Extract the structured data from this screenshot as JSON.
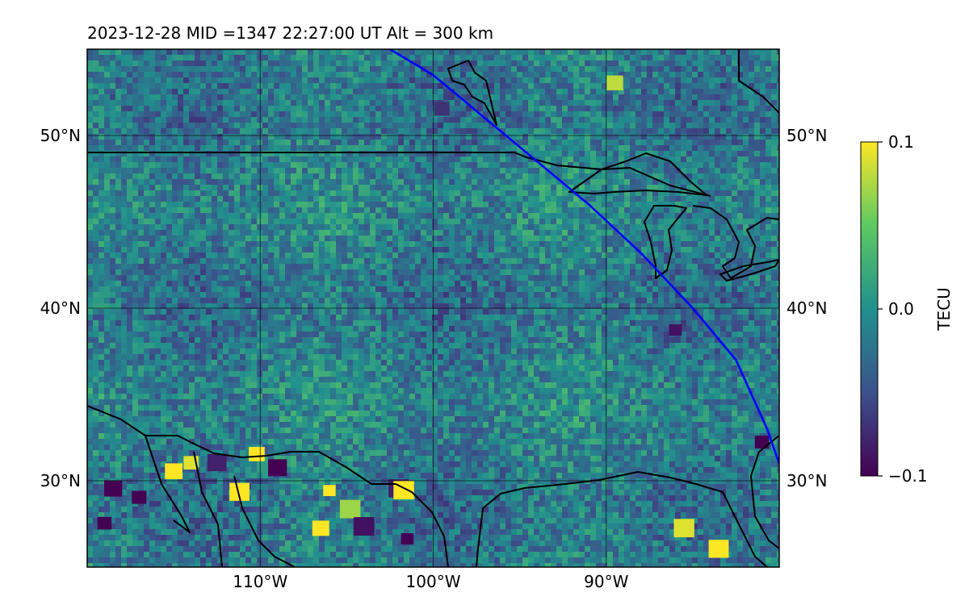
{
  "header": {
    "title": "2023-12-28  MID =1347    22:27:00  UT  Alt = 300 km"
  },
  "chart_data": {
    "type": "heatmap",
    "title": "2023-12-28  MID =1347    22:27:00  UT  Alt = 300 km",
    "date": "2023-12-28",
    "mid": 1347,
    "time_ut": "22:27:00",
    "altitude_km": 300,
    "xlim_lon": [
      -120,
      -80
    ],
    "ylim_lat": [
      25,
      55
    ],
    "lon_ticks": [
      -110,
      -100,
      -90
    ],
    "lon_tick_labels": [
      "110°W",
      "100°W",
      "90°W"
    ],
    "lat_ticks": [
      30,
      40,
      50
    ],
    "lat_tick_labels": [
      "30°N",
      "40°N",
      "50°N"
    ],
    "grid": true,
    "colorbar": {
      "label": "TECU",
      "min": -0.1,
      "max": 0.1,
      "ticks": [
        0.1,
        0.0,
        -0.1
      ],
      "tick_labels": [
        "0.1",
        "0.0",
        "−0.1"
      ],
      "colormap": "viridis",
      "colors": [
        "#440154",
        "#3b528b",
        "#21908d",
        "#5dc963",
        "#fde725"
      ]
    },
    "track": {
      "color": "#0000ff",
      "points": [
        [
          -102.5,
          55
        ],
        [
          -100,
          53.5
        ],
        [
          -97,
          51
        ],
        [
          -94,
          48.5
        ],
        [
          -91,
          46
        ],
        [
          -88,
          43.2
        ],
        [
          -85,
          40
        ],
        [
          -82.5,
          37
        ],
        [
          -80.7,
          33
        ],
        [
          -80,
          31
        ]
      ]
    },
    "hotspots": [
      {
        "lon": -119,
        "lat": 27.5,
        "value": -0.1
      },
      {
        "lon": -118.5,
        "lat": 29.5,
        "value": -0.1
      },
      {
        "lon": -117,
        "lat": 29,
        "value": -0.1
      },
      {
        "lon": -115,
        "lat": 30.5,
        "value": 0.1
      },
      {
        "lon": -114,
        "lat": 31,
        "value": 0.09
      },
      {
        "lon": -112.5,
        "lat": 31,
        "value": -0.08
      },
      {
        "lon": -111.2,
        "lat": 29.3,
        "value": 0.1
      },
      {
        "lon": -110.2,
        "lat": 31.5,
        "value": 0.1
      },
      {
        "lon": -109,
        "lat": 30.7,
        "value": -0.1
      },
      {
        "lon": -106.5,
        "lat": 27.2,
        "value": 0.1
      },
      {
        "lon": -106,
        "lat": 29.4,
        "value": 0.1
      },
      {
        "lon": -104.8,
        "lat": 28.3,
        "value": 0.07
      },
      {
        "lon": -104,
        "lat": 27.3,
        "value": -0.09
      },
      {
        "lon": -102,
        "lat": 29.5,
        "value": -0.08
      },
      {
        "lon": -101.7,
        "lat": 29.4,
        "value": 0.1
      },
      {
        "lon": -101.5,
        "lat": 26.6,
        "value": -0.1
      },
      {
        "lon": -99.5,
        "lat": 51.5,
        "value": -0.07
      },
      {
        "lon": -89.5,
        "lat": 53,
        "value": 0.08
      },
      {
        "lon": -85.5,
        "lat": 27.2,
        "value": 0.09
      },
      {
        "lon": -83.5,
        "lat": 26,
        "value": 0.1
      },
      {
        "lon": -81,
        "lat": 32.2,
        "value": -0.1
      },
      {
        "lon": -86,
        "lat": 38.7,
        "value": -0.09
      }
    ]
  }
}
